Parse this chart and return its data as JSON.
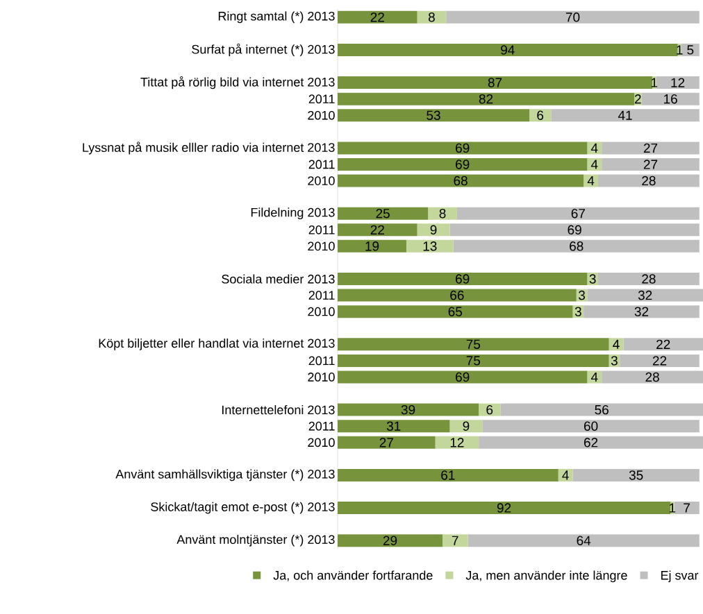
{
  "chart_data": {
    "type": "bar",
    "orientation": "horizontal",
    "stacked": true,
    "data_labels": true,
    "legend": "bottom",
    "tick_labels": "y",
    "xlim": [
      0,
      101
    ],
    "categories": [
      "Ringt samtal (*)  2013",
      null,
      "Surfat på internet (*)  2013",
      null,
      "Tittat på rörlig bild via internet  2013",
      "2011",
      "2010",
      null,
      "Lyssnat på musik elller radio via internet  2013",
      "2011",
      "2010",
      null,
      "Fildelning  2013",
      "2011",
      "2010",
      null,
      "Sociala medier  2013",
      "2011",
      "2010",
      null,
      "Köpt biljetter eller handlat via internet  2013",
      "2011",
      "2010",
      null,
      "Internettelefoni  2013",
      "2011",
      "2010",
      null,
      "Använt samhällsviktiga tjänster (*)  2013",
      null,
      "Skickat/tagit emot e-post (*)  2013",
      null,
      "Använt molntjänster (*)  2013"
    ],
    "series": [
      {
        "name": "Ja, och använder fortfarande",
        "color": "#77933c",
        "values": [
          22,
          null,
          94,
          null,
          87,
          82,
          53,
          null,
          69,
          69,
          68,
          null,
          25,
          22,
          19,
          null,
          69,
          66,
          65,
          null,
          75,
          75,
          69,
          null,
          39,
          31,
          27,
          null,
          61,
          null,
          92,
          null,
          29
        ]
      },
      {
        "name": "Ja, men använder inte längre",
        "color": "#c3d69b",
        "values": [
          8,
          null,
          1,
          null,
          1,
          2,
          6,
          null,
          4,
          4,
          4,
          null,
          8,
          9,
          13,
          null,
          3,
          3,
          3,
          null,
          4,
          3,
          4,
          null,
          6,
          9,
          12,
          null,
          4,
          null,
          1,
          null,
          7
        ]
      },
      {
        "name": "Ej svar",
        "color": "#bfbfbf",
        "values": [
          70,
          null,
          5,
          null,
          12,
          16,
          41,
          null,
          27,
          27,
          28,
          null,
          67,
          69,
          68,
          null,
          28,
          32,
          32,
          null,
          22,
          22,
          28,
          null,
          56,
          60,
          62,
          null,
          35,
          null,
          7,
          null,
          64
        ]
      }
    ]
  }
}
